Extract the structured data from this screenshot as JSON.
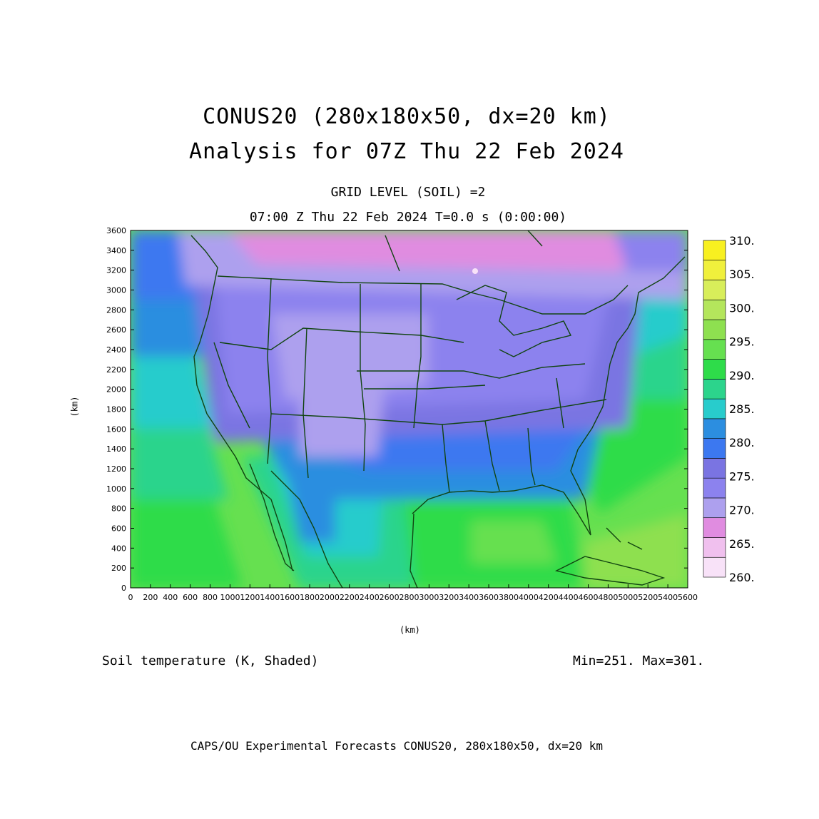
{
  "title": {
    "line1": "CONUS20 (280x180x50, dx=20 km)",
    "line2": "Analysis for 07Z Thu 22 Feb 2024"
  },
  "subtitle": {
    "line1": "GRID LEVEL (SOIL) =2",
    "line2": "07:00 Z Thu 22 Feb 2024   T=0.0 s (0:00:00)"
  },
  "field_label": "Soil temperature (K, Shaded)",
  "minmax": "Min=251. Max=301.",
  "footer": "CAPS/OU Experimental Forecasts  CONUS20, 280x180x50, dx=20 km",
  "axes": {
    "x_label": "(km)",
    "y_label": "(km)",
    "x_ticks": [
      "0",
      "200",
      "400",
      "600",
      "800",
      "1000",
      "1200",
      "1400",
      "1600",
      "1800",
      "2000",
      "2200",
      "2400",
      "2600",
      "2800",
      "3000",
      "3200",
      "3400",
      "3600",
      "3800",
      "4000",
      "4200",
      "4400",
      "4600",
      "4800",
      "5000",
      "5200",
      "5400",
      "5600"
    ],
    "y_ticks": [
      "0",
      "200",
      "400",
      "600",
      "800",
      "1000",
      "1200",
      "1400",
      "1600",
      "1800",
      "2000",
      "2200",
      "2400",
      "2600",
      "2800",
      "3000",
      "3200",
      "3400",
      "3600"
    ],
    "x_range": [
      0,
      5600
    ],
    "y_range": [
      0,
      3600
    ]
  },
  "colorbar": {
    "labels": [
      "260.",
      "265.",
      "270.",
      "275.",
      "280.",
      "285.",
      "290.",
      "295.",
      "300.",
      "305.",
      "310."
    ],
    "colors": [
      "#f8e2f8",
      "#f0c0ee",
      "#e08ce0",
      "#ada0ee",
      "#8c82ee",
      "#7a74e2",
      "#3c78f0",
      "#2c8ee0",
      "#28cccc",
      "#2cd48c",
      "#2edc4a",
      "#66e050",
      "#8ee050",
      "#b4e65c",
      "#d8ee5a",
      "#f0f03c",
      "#f8f020"
    ],
    "colors_count_note": ""
  },
  "map_colors": {
    "border": "#114411"
  }
}
